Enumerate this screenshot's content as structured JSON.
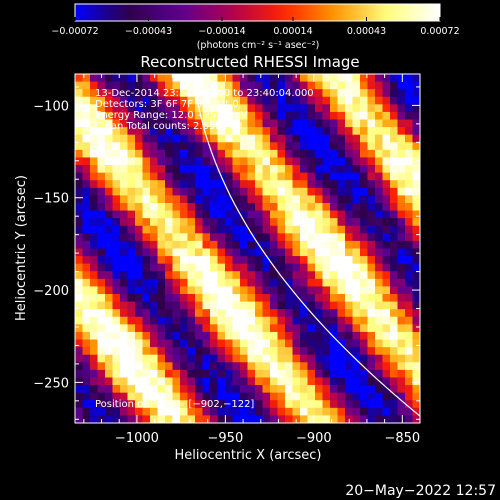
{
  "chart_data": {
    "type": "heatmap",
    "title": "Reconstructed RHESSI Image",
    "xlabel": "Heliocentric X (arcsec)",
    "ylabel": "Heliocentric Y (arcsec)",
    "xlim": [
      -1035,
      -840
    ],
    "ylim": [
      -272,
      -83
    ],
    "xticks": [
      -1000,
      -950,
      -900,
      -850
    ],
    "xtick_labels": [
      "−1000",
      "−950",
      "−900",
      "−850"
    ],
    "yticks": [
      -250,
      -200,
      -150,
      -100
    ],
    "ytick_labels": [
      "−250",
      "−200",
      "−150",
      "−100"
    ],
    "colorbar": {
      "min": -0.00072,
      "max": 0.00072,
      "ticks": [
        -0.00072,
        -0.00043,
        -0.00014,
        0.00014,
        0.00043,
        0.00072
      ],
      "tick_labels": [
        "−0.00072",
        "−0.00043",
        "−0.00014",
        "0.00014",
        "0.00043",
        "0.00072"
      ],
      "units": "(photons cm⁻² s⁻¹ asec⁻²)"
    },
    "colormap": [
      "#0000ff",
      "#2e004a",
      "#5a0090",
      "#b00050",
      "#ff2200",
      "#ff9900",
      "#ffff80",
      "#ffffff"
    ],
    "annotations": [
      "13-Dec-2014 23:54:48.000 to 23:40:04.000",
      "Detectors: 3F 6F 7F 9F, Att 0",
      "Energy Range: 12.0 - 25.0 keV",
      "Clean     Total counts: 2.65E+03"
    ],
    "peak_label": "Position of Peak = [−902,−122]",
    "peak_position": [
      -902,
      -122
    ],
    "limb_curve": true,
    "band_pattern": {
      "orientation": "diagonal, upper-left to lower-right",
      "bright_bands": 4
    }
  },
  "timestamp": "20−May−2022 12:57"
}
